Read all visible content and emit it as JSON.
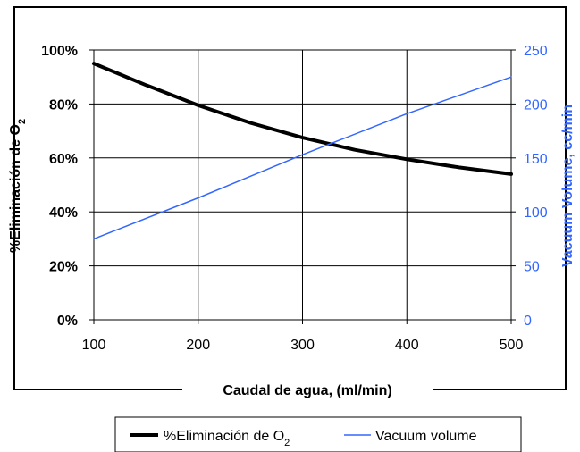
{
  "chart_data": {
    "type": "line",
    "xlabel": "Caudal de agua, (ml/min)",
    "ylabel_left": "%Eliminación de O",
    "ylabel_right": "Vacuum Volume, cc/min",
    "x_ticks": [
      "100",
      "200",
      "300",
      "400",
      "500"
    ],
    "y_left_ticks": [
      "0%",
      "20%",
      "40%",
      "60%",
      "80%",
      "100%"
    ],
    "y_right_ticks": [
      "0",
      "50",
      "100",
      "150",
      "200",
      "250"
    ],
    "xlim": [
      100,
      500
    ],
    "ylim_left": [
      0,
      100
    ],
    "ylim_right": [
      0,
      250
    ],
    "grid": true,
    "legend_position": "bottom",
    "colors": {
      "o2_series": "#000000",
      "vacuum_series": "#3366ff"
    },
    "series": [
      {
        "name": "%Eliminación de O",
        "name_subscript": "2",
        "axis": "left",
        "x": [
          100,
          150,
          200,
          250,
          300,
          350,
          400,
          450,
          500
        ],
        "y": [
          95,
          87,
          79.5,
          73,
          67.5,
          63,
          59.5,
          56.5,
          54
        ]
      },
      {
        "name": "Vacuum volume",
        "axis": "right",
        "x": [
          100,
          200,
          300,
          400,
          500
        ],
        "y": [
          75,
          113,
          153,
          191,
          225
        ]
      }
    ]
  }
}
